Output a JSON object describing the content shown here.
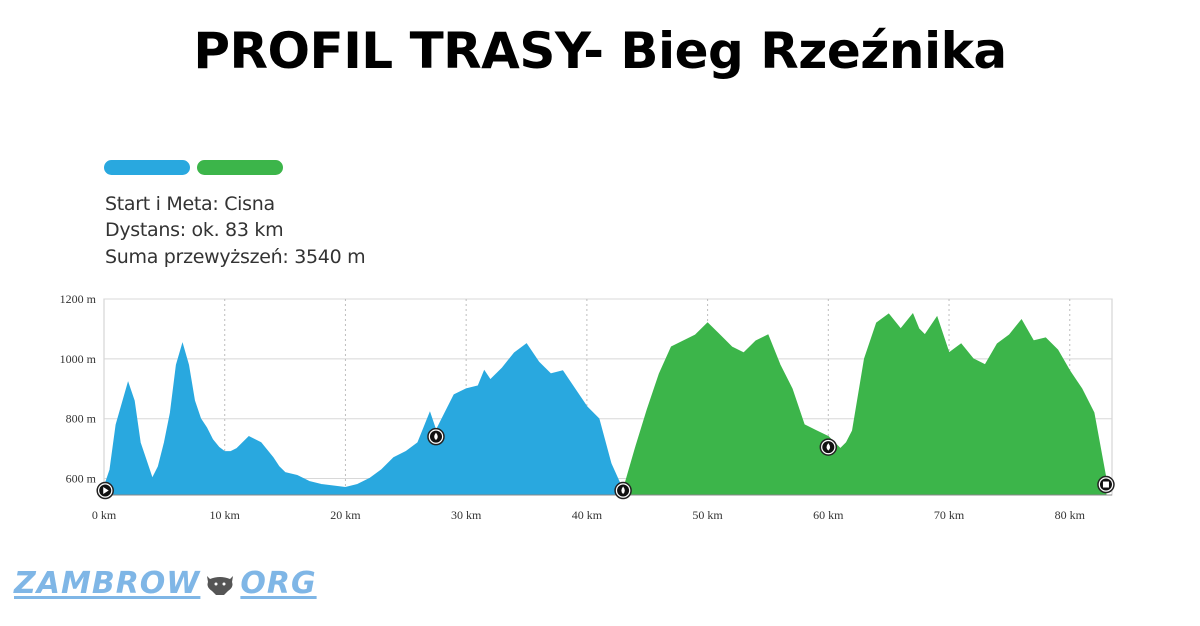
{
  "title": "PROFIL TRASY- Bieg Rzeźnika",
  "colors": {
    "seg1": "#29a8df",
    "seg2": "#3cb54a",
    "grid": "#cccccc"
  },
  "info": {
    "start": "Start i Meta: Cisna",
    "distance": "Dystans: ok. 83 km",
    "gain": "Suma przewyższeń: 3540 m"
  },
  "logo": {
    "left": "ZAMBROW",
    "right": "ORG"
  },
  "chart_data": {
    "type": "area",
    "xlabel": "",
    "ylabel": "",
    "xlim": [
      0,
      83.5
    ],
    "ylim": [
      545,
      1200
    ],
    "x_ticks": [
      0,
      10,
      20,
      30,
      40,
      50,
      60,
      70,
      80
    ],
    "x_tick_labels": [
      "0 km",
      "10 km",
      "20 km",
      "30 km",
      "40 km",
      "50 km",
      "60 km",
      "70 km",
      "80 km"
    ],
    "y_ticks": [
      600,
      800,
      1000,
      1200
    ],
    "y_tick_labels": [
      "600 m",
      "800 m",
      "1000 m",
      "1200 m"
    ],
    "grid": true,
    "series": [
      {
        "color": "#29a8df",
        "x": [
          0,
          0.5,
          1.0,
          1.5,
          2.0,
          2.5,
          3.0,
          3.5,
          4.0,
          4.5,
          5.0,
          5.5,
          6.0,
          6.5,
          7.0,
          7.5,
          8.0,
          8.5,
          9.0,
          9.5,
          10.0,
          10.5,
          11.0,
          12.0,
          13.0,
          14.0,
          14.5,
          15.0,
          16.0,
          17.0,
          18.0,
          19.0,
          20.0,
          21.0,
          22.0,
          23.0,
          24.0,
          25.0,
          26.0,
          27.0,
          27.5,
          28.0,
          29.0,
          30.0,
          31.0,
          31.5,
          32.0,
          33.0,
          34.0,
          35.0,
          36.0,
          37.0,
          38.0,
          39.0,
          40.0,
          41.0,
          42.0,
          43.0
        ],
        "y": [
          570,
          630,
          780,
          850,
          920,
          860,
          720,
          660,
          600,
          640,
          720,
          820,
          980,
          1050,
          980,
          860,
          800,
          770,
          730,
          705,
          690,
          690,
          700,
          740,
          720,
          670,
          640,
          620,
          610,
          590,
          580,
          575,
          570,
          580,
          600,
          630,
          670,
          690,
          720,
          820,
          760,
          800,
          880,
          900,
          910,
          960,
          930,
          970,
          1020,
          1050,
          990,
          950,
          960,
          900,
          840,
          800,
          650,
          560
        ]
      },
      {
        "color": "#3cb54a",
        "x": [
          43.0,
          44.0,
          45.0,
          46.0,
          47.0,
          48.0,
          49.0,
          50.0,
          51.0,
          52.0,
          53.0,
          54.0,
          55.0,
          56.0,
          57.0,
          58.0,
          59.0,
          60.0,
          60.5,
          61.0,
          61.5,
          62.0,
          63.0,
          64.0,
          65.0,
          66.0,
          67.0,
          67.5,
          68.0,
          69.0,
          70.0,
          71.0,
          72.0,
          73.0,
          74.0,
          75.0,
          76.0,
          77.0,
          78.0,
          79.0,
          80.0,
          81.0,
          82.0,
          83.0
        ],
        "y": [
          560,
          700,
          830,
          950,
          1040,
          1060,
          1080,
          1120,
          1080,
          1040,
          1020,
          1060,
          1080,
          980,
          900,
          780,
          760,
          740,
          720,
          700,
          720,
          760,
          1000,
          1120,
          1150,
          1100,
          1150,
          1100,
          1080,
          1140,
          1020,
          1050,
          1000,
          980,
          1050,
          1080,
          1130,
          1060,
          1070,
          1030,
          960,
          900,
          820,
          600
        ]
      }
    ],
    "markers": [
      {
        "type": "start",
        "x": 0.1,
        "y": 560
      },
      {
        "type": "water",
        "x": 27.5,
        "y": 740
      },
      {
        "type": "water",
        "x": 43.0,
        "y": 560
      },
      {
        "type": "water",
        "x": 60.0,
        "y": 705
      },
      {
        "type": "finish",
        "x": 83.0,
        "y": 580
      }
    ]
  }
}
